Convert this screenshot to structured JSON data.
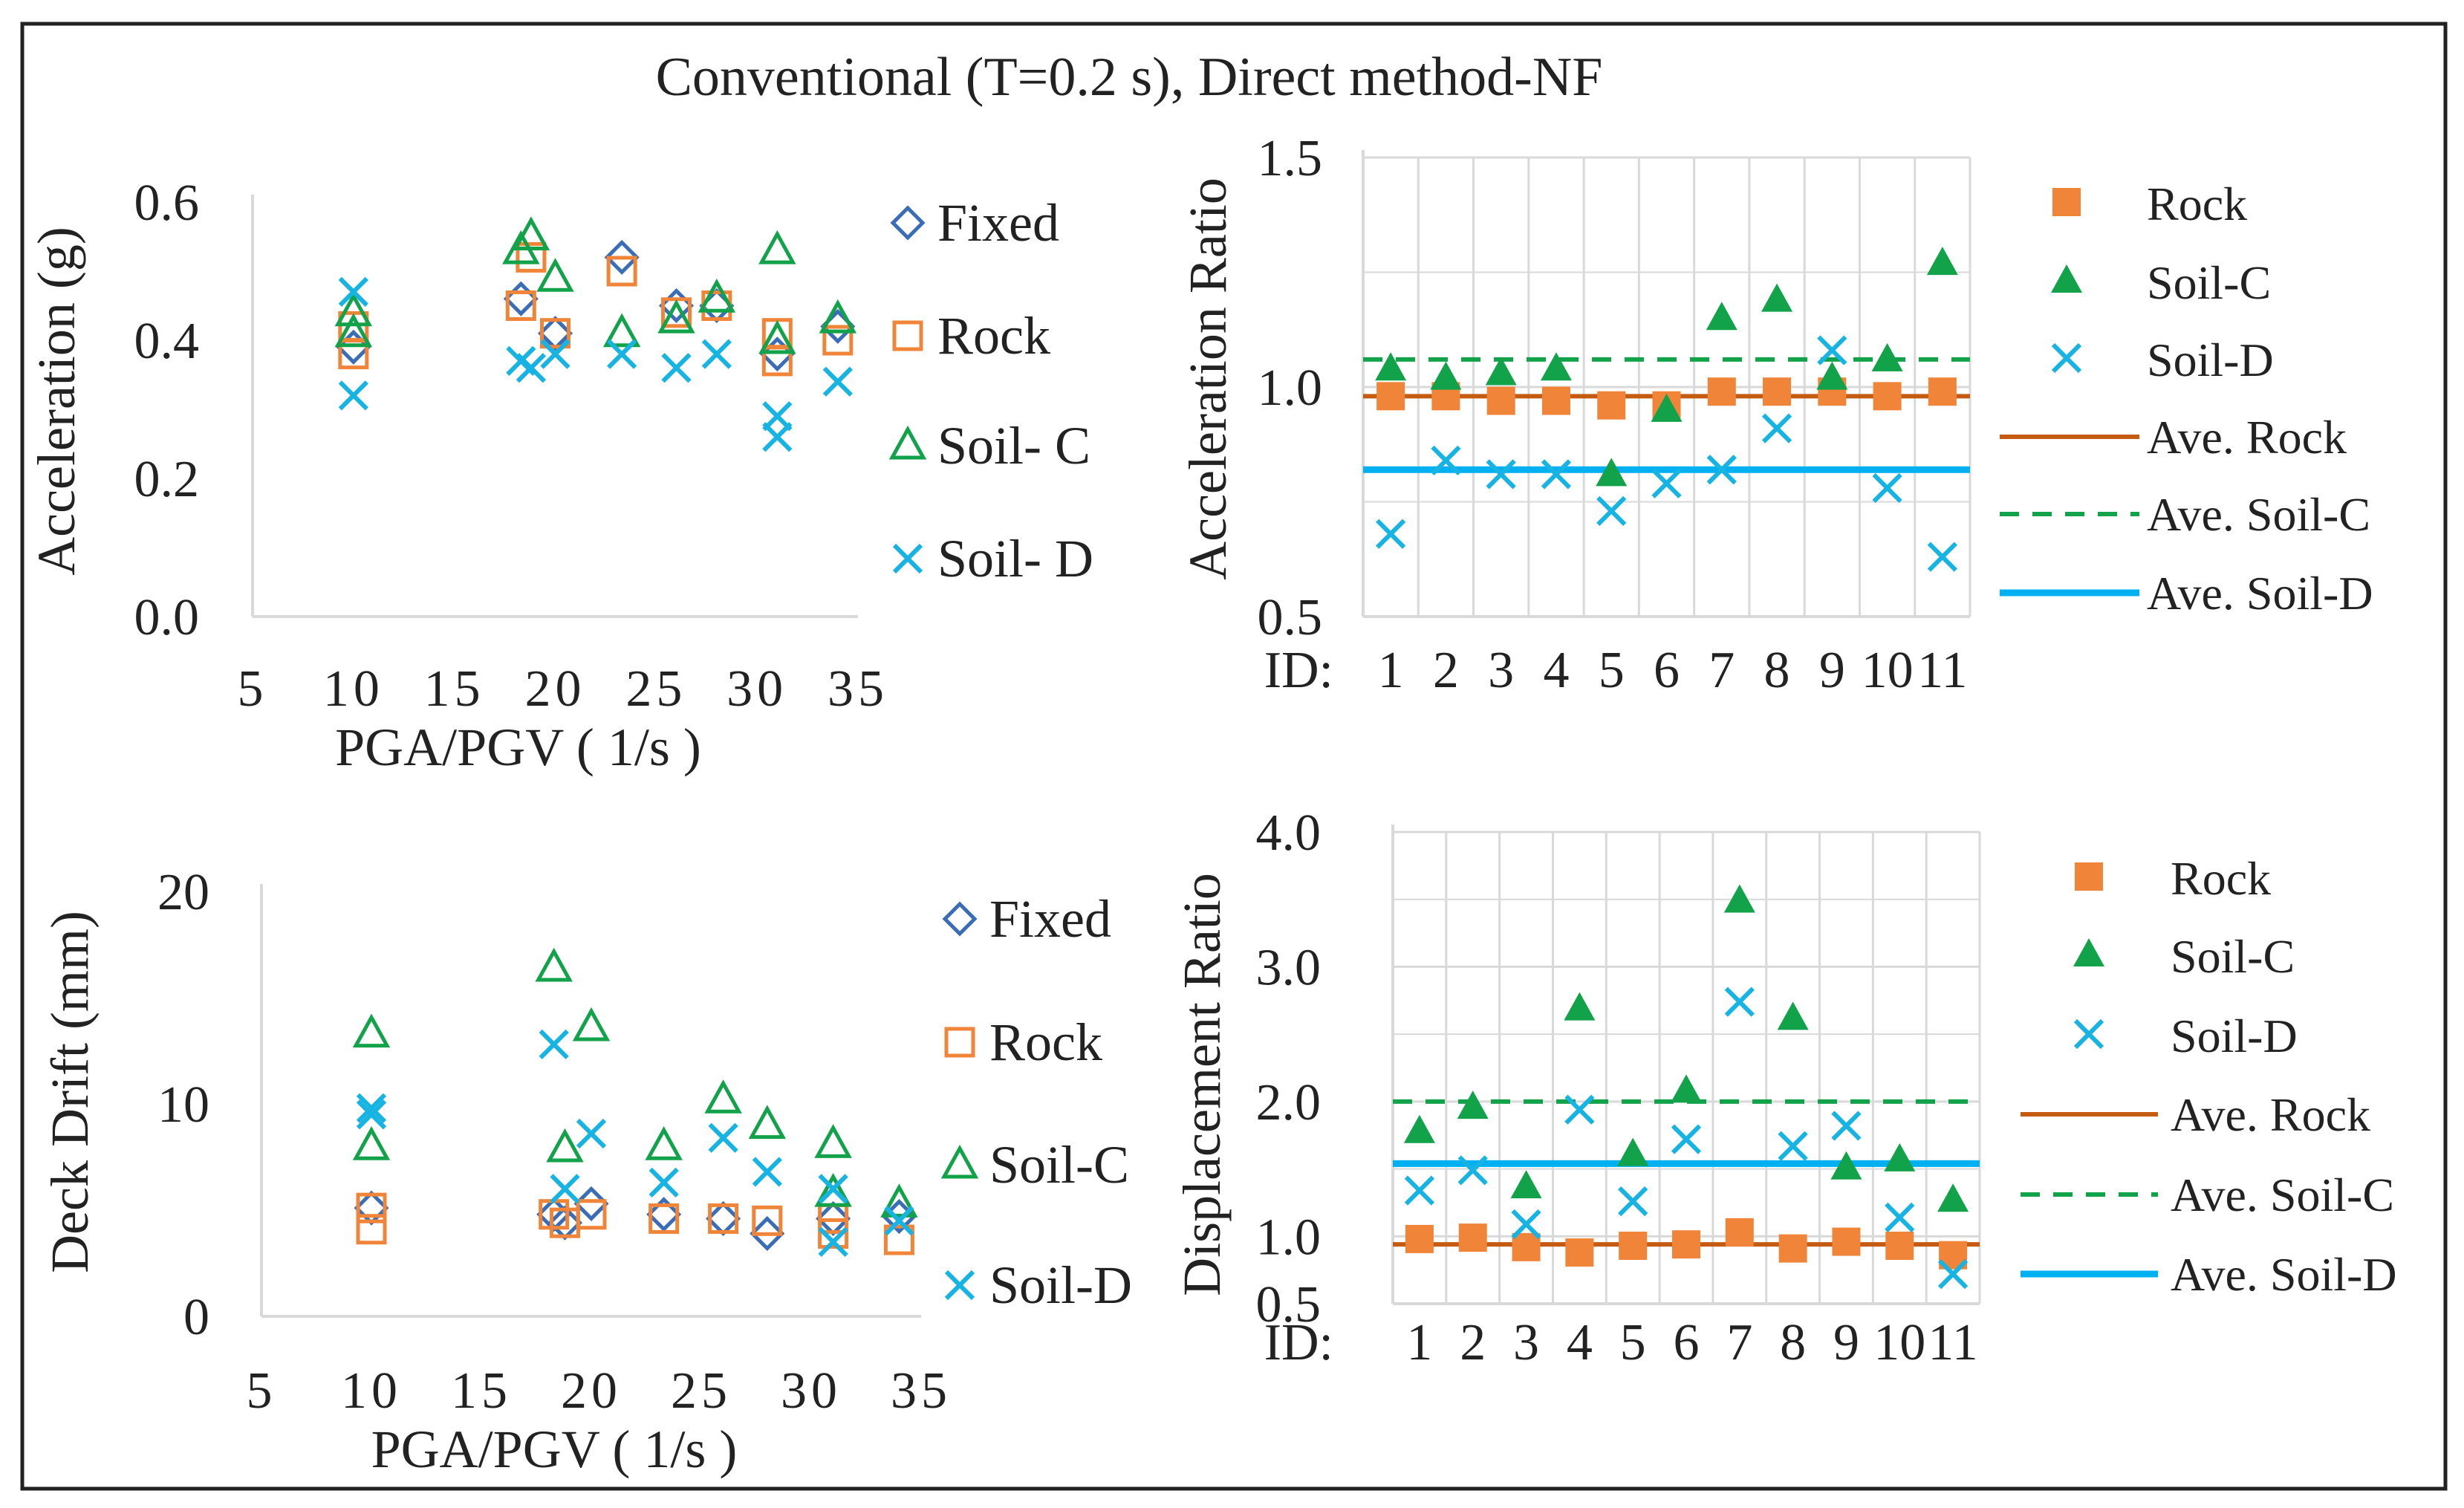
{
  "title": "Conventional (T=0.2 s), Direct method-NF",
  "colors": {
    "fixed": "#3a6db5",
    "rock": "#f0853a",
    "soil_c": "#12a34a",
    "soil_d": "#17b4e3",
    "ave_rock": "#c55a11",
    "ave_soil_c": "#12a34a",
    "ave_soil_d": "#00b0f0",
    "grid": "#d9d9d9",
    "frame": "#222222"
  },
  "chart_data": [
    {
      "type": "scatter",
      "ylabel": "Acceleration (g)",
      "xlabel": "PGA/PGV ( 1/s )",
      "xlim": [
        5,
        35
      ],
      "ylim": [
        0,
        0.6
      ],
      "xticks": [
        "5",
        "10",
        "15",
        "20",
        "25",
        "30",
        "35"
      ],
      "yticks": [
        "0.0",
        "0.2",
        "0.4",
        "0.6"
      ],
      "grid": false,
      "legend_position": "right",
      "series": [
        {
          "name": "Fixed",
          "marker": "diamond",
          "color_key": "fixed",
          "x": [
            10,
            18.3,
            20,
            23.3,
            26,
            28,
            31,
            34
          ],
          "y": [
            0.39,
            0.46,
            0.41,
            0.52,
            0.45,
            0.45,
            0.38,
            0.42
          ]
        },
        {
          "name": "Rock",
          "marker": "square",
          "color_key": "rock",
          "x": [
            10,
            10,
            18.3,
            18.8,
            20,
            23.3,
            26,
            28,
            31,
            31,
            34
          ],
          "y": [
            0.38,
            0.42,
            0.45,
            0.52,
            0.41,
            0.5,
            0.44,
            0.45,
            0.37,
            0.41,
            0.4
          ]
        },
        {
          "name": "Soil- C",
          "marker": "triangle",
          "color_key": "soil_c",
          "x": [
            10,
            10,
            18.3,
            18.8,
            20,
            23.3,
            26,
            28,
            31,
            31,
            34
          ],
          "y": [
            0.41,
            0.44,
            0.53,
            0.55,
            0.49,
            0.41,
            0.43,
            0.46,
            0.4,
            0.53,
            0.43
          ]
        },
        {
          "name": "Soil- D",
          "marker": "x",
          "color_key": "soil_d",
          "x": [
            10,
            10,
            18.3,
            18.8,
            20,
            23.3,
            26,
            28,
            31,
            31,
            34
          ],
          "y": [
            0.32,
            0.47,
            0.37,
            0.36,
            0.38,
            0.38,
            0.36,
            0.38,
            0.26,
            0.29,
            0.34
          ]
        }
      ]
    },
    {
      "type": "scatter",
      "ylabel": "Acceleration Ratio",
      "xlabel": "",
      "category_prefix": "ID:",
      "categories": [
        "1",
        "2",
        "3",
        "4",
        "5",
        "6",
        "7",
        "8",
        "9",
        "10",
        "11"
      ],
      "ylim": [
        0.5,
        1.5
      ],
      "yticks": [
        "0.5",
        "1.0",
        "1.5"
      ],
      "grid": true,
      "legend_position": "right",
      "series": [
        {
          "name": "Rock",
          "marker": "filled-square",
          "color_key": "rock",
          "values": [
            0.98,
            0.98,
            0.97,
            0.97,
            0.96,
            0.96,
            0.99,
            0.99,
            0.99,
            0.98,
            0.99
          ]
        },
        {
          "name": "Soil-C",
          "marker": "filled-triangle",
          "color_key": "soil_c",
          "values": [
            1.04,
            1.02,
            1.03,
            1.04,
            0.81,
            0.95,
            1.15,
            1.19,
            1.02,
            1.06,
            1.27
          ]
        },
        {
          "name": "Soil-D",
          "marker": "x",
          "color_key": "soil_d",
          "values": [
            0.68,
            0.84,
            0.81,
            0.81,
            0.73,
            0.79,
            0.82,
            0.91,
            1.08,
            0.78,
            0.63
          ]
        }
      ],
      "averages": [
        {
          "name": "Ave. Rock",
          "value": 0.98,
          "style": "solid-thin",
          "color_key": "ave_rock"
        },
        {
          "name": "Ave. Soil-C",
          "value": 1.06,
          "style": "dashed",
          "color_key": "ave_soil_c"
        },
        {
          "name": "Ave. Soil-D",
          "value": 0.82,
          "style": "solid-thick",
          "color_key": "ave_soil_d"
        }
      ]
    },
    {
      "type": "scatter",
      "ylabel": "Deck Drift (mm)",
      "xlabel": "PGA/PGV ( 1/s )",
      "xlim": [
        5,
        35
      ],
      "ylim": [
        0,
        20
      ],
      "xticks": [
        "5",
        "10",
        "15",
        "20",
        "25",
        "30",
        "35"
      ],
      "yticks": [
        "0",
        "10",
        "20"
      ],
      "grid": false,
      "legend_position": "right",
      "series": [
        {
          "name": "Fixed",
          "marker": "diamond",
          "color_key": "fixed",
          "x": [
            10,
            18.3,
            18.8,
            20,
            23.3,
            26,
            28,
            31,
            34
          ],
          "y": [
            5.1,
            4.8,
            4.4,
            5.3,
            4.8,
            4.6,
            3.9,
            4.6,
            4.7
          ]
        },
        {
          "name": "Rock",
          "marker": "square",
          "color_key": "rock",
          "x": [
            10,
            10,
            18.3,
            18.8,
            20,
            23.3,
            26,
            28,
            31,
            31,
            34
          ],
          "y": [
            4.1,
            5.1,
            4.8,
            4.4,
            4.8,
            4.6,
            4.6,
            4.5,
            3.9,
            4.6,
            3.6
          ]
        },
        {
          "name": "Soil-C",
          "marker": "triangle",
          "color_key": "soil_c",
          "x": [
            10,
            10,
            18.3,
            18.8,
            20,
            23.3,
            26,
            28,
            31,
            31,
            34
          ],
          "y": [
            8.0,
            13.3,
            16.4,
            7.9,
            13.6,
            8.0,
            10.2,
            9.0,
            5.8,
            8.1,
            5.3
          ]
        },
        {
          "name": "Soil-D",
          "marker": "x",
          "color_key": "soil_d",
          "x": [
            10,
            10,
            18.3,
            18.8,
            20,
            23.3,
            26,
            28,
            31,
            31,
            34
          ],
          "y": [
            9.5,
            9.8,
            12.8,
            6.0,
            8.6,
            6.3,
            8.4,
            6.8,
            3.5,
            6.0,
            4.5
          ]
        }
      ]
    },
    {
      "type": "scatter",
      "ylabel": "Displacement Ratio",
      "xlabel": "",
      "category_prefix": "ID:",
      "categories": [
        "1",
        "2",
        "3",
        "4",
        "5",
        "6",
        "7",
        "8",
        "9",
        "10",
        "11"
      ],
      "ylim": [
        0.5,
        4.0
      ],
      "yticks": [
        "0.5",
        "1.0",
        "2.0",
        "3.0",
        "4.0"
      ],
      "grid": true,
      "legend_position": "right",
      "series": [
        {
          "name": "Rock",
          "marker": "filled-square",
          "color_key": "rock",
          "values": [
            0.98,
            0.99,
            0.92,
            0.88,
            0.93,
            0.94,
            1.03,
            0.91,
            0.96,
            0.93,
            0.86
          ]
        },
        {
          "name": "Soil-C",
          "marker": "filled-triangle",
          "color_key": "soil_c",
          "values": [
            1.78,
            1.96,
            1.37,
            2.69,
            1.61,
            2.08,
            3.49,
            2.62,
            1.51,
            1.57,
            1.27
          ]
        },
        {
          "name": "Soil-D",
          "marker": "x",
          "color_key": "soil_d",
          "values": [
            1.34,
            1.49,
            1.09,
            1.94,
            1.26,
            1.72,
            2.74,
            1.67,
            1.82,
            1.14,
            0.72
          ]
        }
      ],
      "averages": [
        {
          "name": "Ave. Rock",
          "value": 0.94,
          "style": "solid-thin",
          "color_key": "ave_rock"
        },
        {
          "name": "Ave. Soil-C",
          "value": 2.0,
          "style": "dashed",
          "color_key": "ave_soil_c"
        },
        {
          "name": "Ave. Soil-D",
          "value": 1.54,
          "style": "solid-thick",
          "color_key": "ave_soil_d"
        }
      ]
    }
  ]
}
